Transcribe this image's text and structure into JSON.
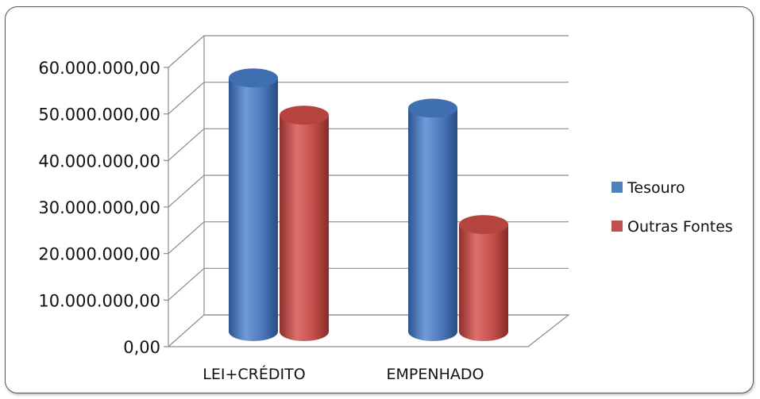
{
  "chart_data": {
    "type": "bar",
    "style": "3d-cylinder",
    "categories": [
      "LEI+CRÉDITO",
      "EMPENHADO"
    ],
    "series": [
      {
        "name": "Tesouro",
        "values": [
          54500000,
          48000000
        ],
        "color": "#4F81BD"
      },
      {
        "name": "Outras Fontes",
        "values": [
          46500000,
          23000000
        ],
        "color": "#C0504D"
      }
    ],
    "y_ticks": [
      "0,00",
      "10.000.000,00",
      "20.000.000,00",
      "30.000.000,00",
      "40.000.000,00",
      "50.000.000,00",
      "60.000.000,00"
    ],
    "ylim": [
      0,
      60000000
    ],
    "grid": true,
    "legend": "right"
  }
}
